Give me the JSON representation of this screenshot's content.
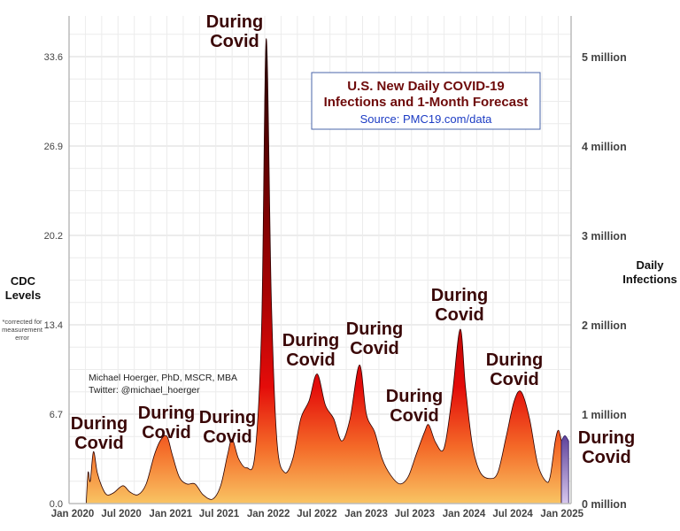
{
  "chart_data": {
    "type": "area",
    "title": "U.S. New Daily COVID-19 Infections and 1-Month Forecast",
    "subtitle": "Source:  PMC19.com/data",
    "ylabel_left": [
      "CDC",
      "Levels"
    ],
    "ylabel_left_note": [
      "*corrected for",
      "measurement",
      "error"
    ],
    "ylabel_right": [
      "Daily",
      "Infections"
    ],
    "credit": [
      "Michael Hoerger, PhD, MSCR, MBA",
      "Twitter: @michael_hoerger"
    ],
    "left_ticks": [
      "0.0",
      "6.7",
      "13.4",
      "20.2",
      "26.9",
      "33.6"
    ],
    "right_ticks": [
      "0 million",
      "1 million",
      "2 million",
      "3 million",
      "4 million",
      "5 million"
    ],
    "right_tick_values": [
      0,
      1,
      2,
      3,
      4,
      5
    ],
    "x_ticks": [
      {
        "label": "Jan 2020",
        "date": "2020-01-01"
      },
      {
        "label": "Jul 2020",
        "date": "2020-07-01"
      },
      {
        "label": "Jan 2021",
        "date": "2021-01-01"
      },
      {
        "label": "Jul 2021",
        "date": "2021-07-01"
      },
      {
        "label": "Jan 2022",
        "date": "2022-01-01"
      },
      {
        "label": "Jul 2022",
        "date": "2022-07-01"
      },
      {
        "label": "Jan 2023",
        "date": "2023-01-01"
      },
      {
        "label": "Jul 2023",
        "date": "2023-07-01"
      },
      {
        "label": "Jan 2024",
        "date": "2024-01-01"
      },
      {
        "label": "Jul 2024",
        "date": "2024-07-01"
      },
      {
        "label": "Jan 2025",
        "date": "2025-01-01"
      }
    ],
    "ylim_millions": [
      0,
      5.25
    ],
    "grid": true,
    "colors": {
      "low": "#f9c463",
      "mid": "#e40c0a",
      "high": "#1e0000",
      "forecast_low": "#d8c8ee",
      "forecast_high": "#4a2c8c",
      "annotation": "#3a0707",
      "title": "#6e0a0a",
      "source": "#1c3cc4"
    },
    "series": [
      {
        "kind": "observed",
        "unit": "million",
        "points": [
          [
            "2020-03-05",
            0.0
          ],
          [
            "2020-03-12",
            0.35
          ],
          [
            "2020-03-20",
            0.25
          ],
          [
            "2020-04-01",
            0.58
          ],
          [
            "2020-04-15",
            0.35
          ],
          [
            "2020-05-01",
            0.2
          ],
          [
            "2020-05-20",
            0.1
          ],
          [
            "2020-06-15",
            0.12
          ],
          [
            "2020-07-20",
            0.2
          ],
          [
            "2020-08-15",
            0.13
          ],
          [
            "2020-09-15",
            0.1
          ],
          [
            "2020-10-15",
            0.22
          ],
          [
            "2020-11-15",
            0.55
          ],
          [
            "2020-12-10",
            0.72
          ],
          [
            "2021-01-01",
            0.75
          ],
          [
            "2021-01-20",
            0.55
          ],
          [
            "2021-02-15",
            0.3
          ],
          [
            "2021-03-15",
            0.22
          ],
          [
            "2021-04-15",
            0.22
          ],
          [
            "2021-05-15",
            0.1
          ],
          [
            "2021-06-20",
            0.05
          ],
          [
            "2021-07-20",
            0.2
          ],
          [
            "2021-08-15",
            0.55
          ],
          [
            "2021-09-01",
            0.72
          ],
          [
            "2021-09-25",
            0.5
          ],
          [
            "2021-10-25",
            0.4
          ],
          [
            "2021-11-25",
            0.55
          ],
          [
            "2021-12-20",
            2.0
          ],
          [
            "2022-01-06",
            5.2
          ],
          [
            "2022-01-25",
            2.3
          ],
          [
            "2022-02-15",
            0.7
          ],
          [
            "2022-03-15",
            0.35
          ],
          [
            "2022-04-15",
            0.5
          ],
          [
            "2022-05-15",
            0.95
          ],
          [
            "2022-06-15",
            1.15
          ],
          [
            "2022-07-15",
            1.45
          ],
          [
            "2022-08-15",
            1.1
          ],
          [
            "2022-09-15",
            0.95
          ],
          [
            "2022-10-15",
            0.7
          ],
          [
            "2022-11-15",
            0.95
          ],
          [
            "2022-12-20",
            1.55
          ],
          [
            "2023-01-15",
            1.0
          ],
          [
            "2023-02-15",
            0.8
          ],
          [
            "2023-03-15",
            0.5
          ],
          [
            "2023-04-15",
            0.32
          ],
          [
            "2023-05-20",
            0.22
          ],
          [
            "2023-06-20",
            0.3
          ],
          [
            "2023-07-20",
            0.55
          ],
          [
            "2023-08-20",
            0.8
          ],
          [
            "2023-09-05",
            0.88
          ],
          [
            "2023-10-01",
            0.68
          ],
          [
            "2023-11-01",
            0.62
          ],
          [
            "2023-12-01",
            1.2
          ],
          [
            "2023-12-31",
            1.95
          ],
          [
            "2024-01-20",
            1.3
          ],
          [
            "2024-02-15",
            0.65
          ],
          [
            "2024-03-15",
            0.35
          ],
          [
            "2024-04-20",
            0.28
          ],
          [
            "2024-05-20",
            0.35
          ],
          [
            "2024-06-20",
            0.75
          ],
          [
            "2024-07-20",
            1.15
          ],
          [
            "2024-08-15",
            1.25
          ],
          [
            "2024-09-15",
            0.95
          ],
          [
            "2024-10-15",
            0.45
          ],
          [
            "2024-11-15",
            0.25
          ],
          [
            "2024-12-01",
            0.3
          ],
          [
            "2024-12-20",
            0.7
          ],
          [
            "2025-01-01",
            0.82
          ],
          [
            "2025-01-12",
            0.7
          ]
        ]
      },
      {
        "kind": "forecast",
        "unit": "million",
        "points": [
          [
            "2025-01-12",
            0.7
          ],
          [
            "2025-01-25",
            0.76
          ],
          [
            "2025-02-08",
            0.7
          ]
        ]
      }
    ],
    "annotations": [
      {
        "lines": [
          "During",
          "Covid"
        ],
        "date": "2020-04-01"
      },
      {
        "lines": [
          "During",
          "Covid"
        ],
        "date": "2021-01-01"
      },
      {
        "lines": [
          "During",
          "Covid"
        ],
        "date": "2021-09-01"
      },
      {
        "lines": [
          "During",
          "Covid"
        ],
        "date": "2022-01-06"
      },
      {
        "lines": [
          "During",
          "Covid"
        ],
        "date": "2022-07-15"
      },
      {
        "lines": [
          "During",
          "Covid"
        ],
        "date": "2022-12-20"
      },
      {
        "lines": [
          "During",
          "Covid"
        ],
        "date": "2023-09-05"
      },
      {
        "lines": [
          "During",
          "Covid"
        ],
        "date": "2023-12-31"
      },
      {
        "lines": [
          "During",
          "Covid"
        ],
        "date": "2024-08-15"
      },
      {
        "lines": [
          "During",
          "Covid"
        ],
        "date": "2025-01-25"
      }
    ]
  }
}
